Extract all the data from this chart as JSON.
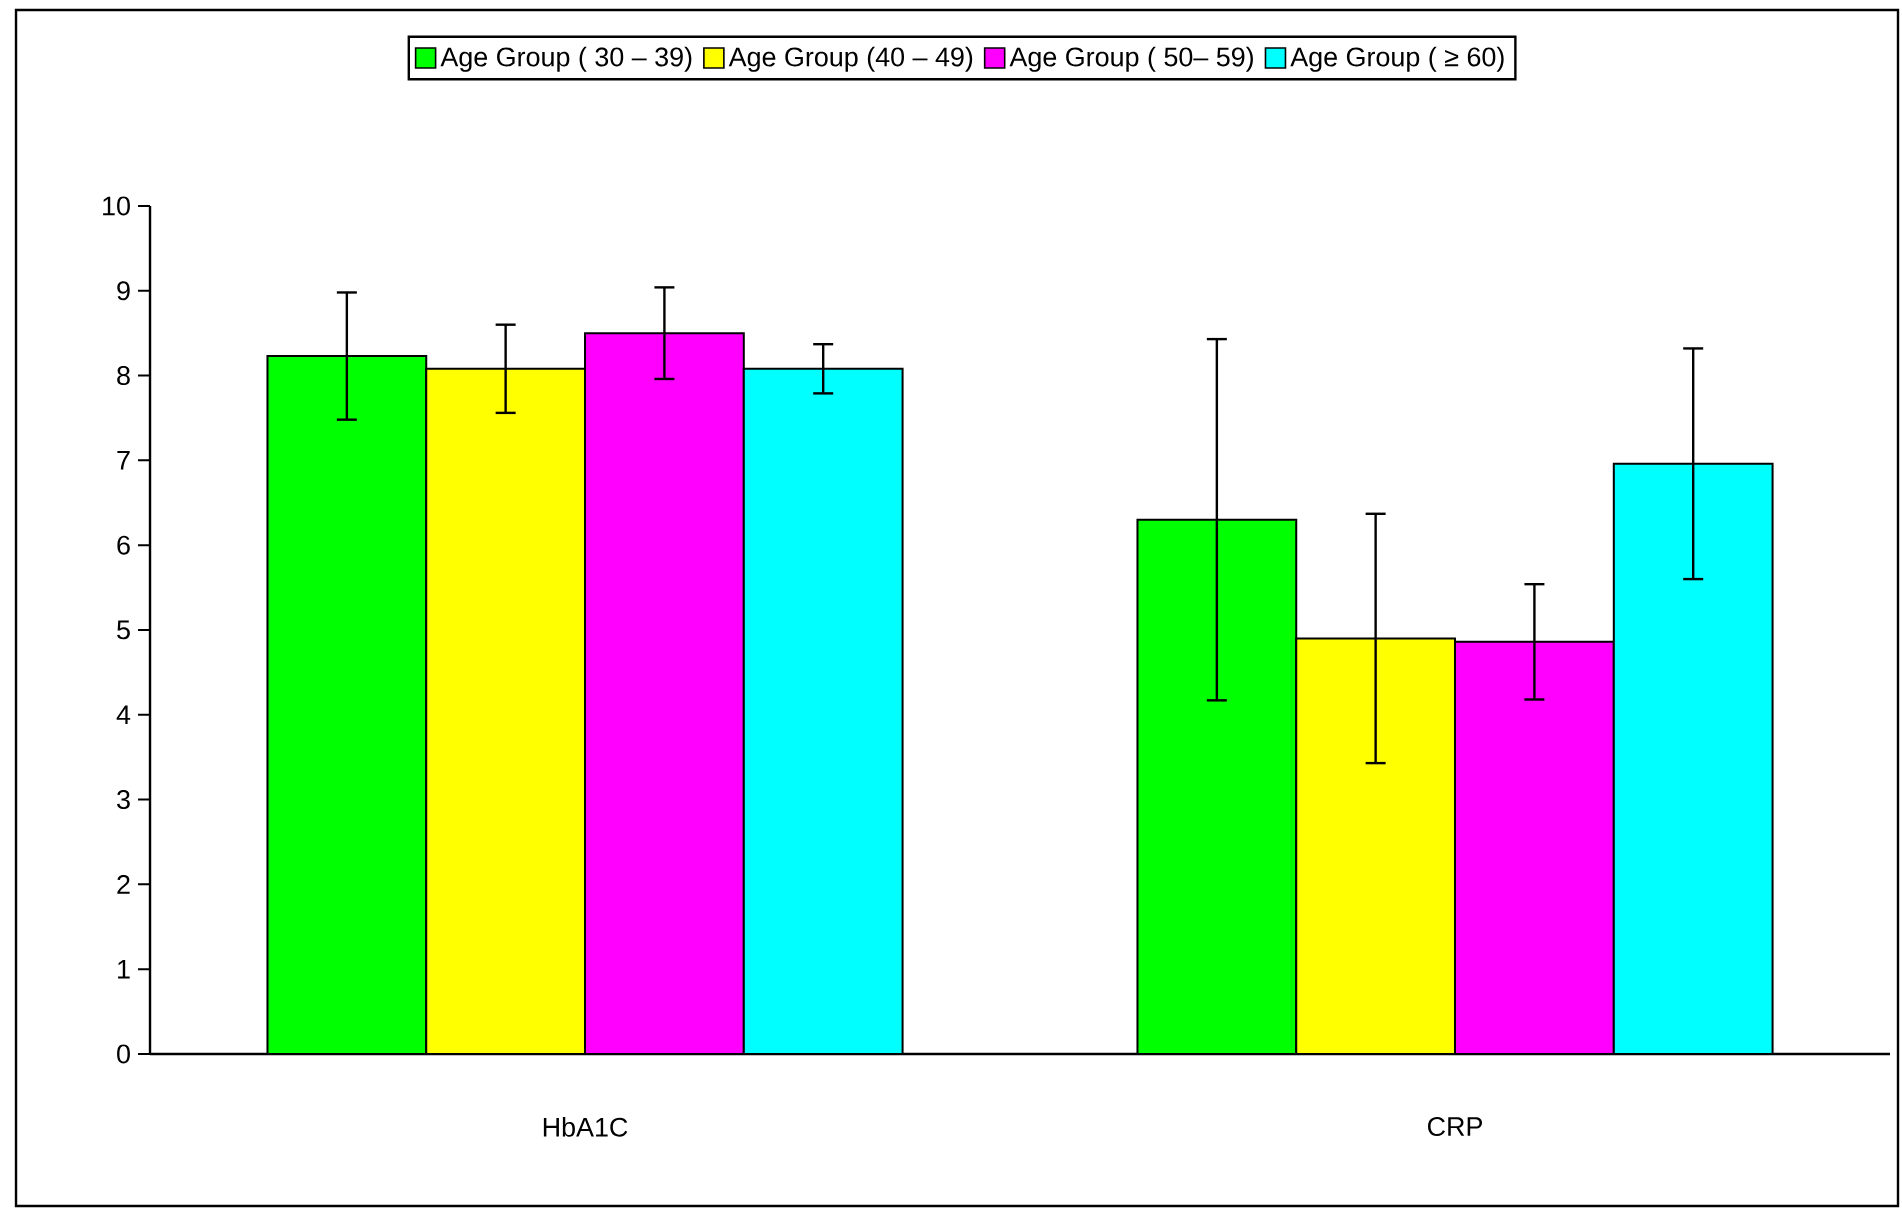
{
  "chart_data": {
    "type": "bar",
    "categories": [
      "HbA1C",
      "CRP"
    ],
    "series": [
      {
        "name": "Age Group ( 30 – 39)",
        "color": "#00ff00",
        "values": [
          8.23,
          6.3
        ],
        "errors": [
          0.75,
          2.13
        ]
      },
      {
        "name": "Age Group (40 – 49)",
        "color": "#ffff00",
        "values": [
          8.08,
          4.9
        ],
        "errors": [
          0.52,
          1.47
        ]
      },
      {
        "name": "Age Group ( 50– 59)",
        "color": "#ff00ff",
        "values": [
          8.5,
          4.86
        ],
        "errors": [
          0.54,
          0.68
        ]
      },
      {
        "name": "Age Group (  ≥ 60)",
        "color": "#00ffff",
        "values": [
          8.08,
          6.96
        ],
        "errors": [
          0.29,
          1.36
        ]
      }
    ],
    "ylim": [
      0,
      10
    ],
    "yticks": [
      0,
      1,
      2,
      3,
      4,
      5,
      6,
      7,
      8,
      9,
      10
    ],
    "legend": "top"
  }
}
